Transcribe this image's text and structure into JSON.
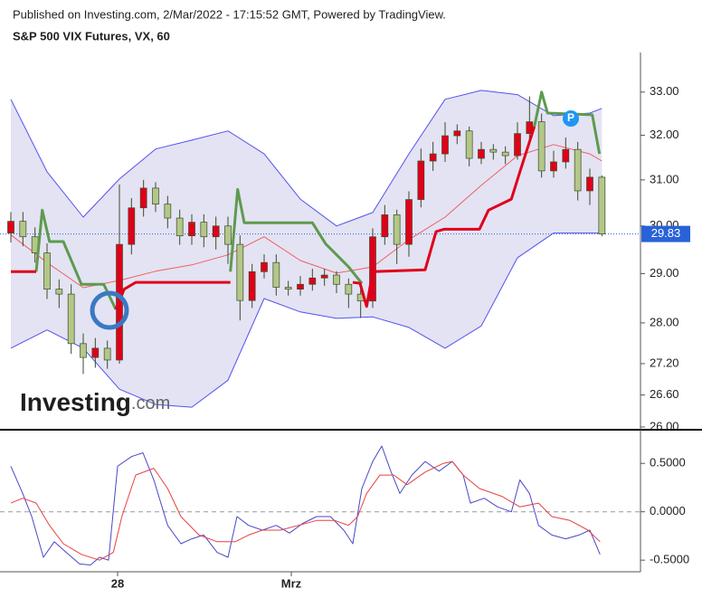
{
  "chart_data": [
    {
      "type": "candlestick",
      "source": "Published on Investing.com, 2/Mar/2022 - 17:15:52 GMT, Powered by TradingView.",
      "title": "S&P 500 VIX Futures, VX, 60",
      "logo": {
        "name": "Investing",
        "suffix": ".com"
      },
      "marker": "P",
      "log_scale": true,
      "xlim": [
        -0.9,
        52.2
      ],
      "xticks": [
        {
          "value": 8.85,
          "label": "28"
        },
        {
          "value": 23.25,
          "label": "Mrz"
        }
      ],
      "ylim": [
        25.95,
        33.9
      ],
      "yticks": [
        {
          "value": 26,
          "label": "26.00"
        },
        {
          "value": 26.6,
          "label": "26.60"
        },
        {
          "value": 27.2,
          "label": "27.20"
        },
        {
          "value": 28,
          "label": "28.00"
        },
        {
          "value": 29,
          "label": "29.00"
        },
        {
          "value": 30,
          "label": "30.00"
        },
        {
          "value": 31,
          "label": "31.00"
        },
        {
          "value": 32,
          "label": "32.00"
        },
        {
          "value": 33,
          "label": "33.00"
        }
      ],
      "up_color": "#e0001a",
      "down_color": "#b3c788",
      "outline_color": "#3b4a2a",
      "open": [
        29.85,
        30.1,
        29.77,
        29.43,
        28.68,
        28.58,
        27.59,
        27.32,
        27.5,
        27.27,
        29.61,
        30.39,
        30.82,
        30.47,
        30.17,
        29.79,
        30.08,
        29.77,
        30.0,
        29.61,
        28.45,
        29.04,
        29.23,
        28.72,
        28.68,
        28.78,
        28.91,
        28.97,
        28.78,
        28.58,
        28.44,
        29.77,
        30.24,
        29.61,
        30.57,
        31.42,
        31.58,
        31.99,
        32.1,
        31.48,
        31.68,
        31.62,
        31.54,
        32.04,
        32.31,
        31.2,
        31.4,
        31.68,
        30.76,
        31.06
      ],
      "high": [
        30.3,
        30.3,
        29.97,
        29.63,
        28.88,
        28.78,
        27.79,
        27.7,
        27.65,
        30.9,
        30.6,
        31.0,
        30.95,
        30.65,
        30.35,
        30.25,
        30.25,
        30.2,
        30.2,
        29.8,
        29.2,
        29.4,
        29.4,
        28.85,
        28.95,
        29.1,
        29.1,
        29.05,
        28.9,
        28.75,
        29.95,
        30.45,
        30.35,
        30.75,
        31.7,
        31.85,
        32.3,
        32.25,
        32.2,
        31.85,
        31.8,
        31.75,
        32.3,
        32.9,
        32.5,
        31.65,
        31.95,
        31.85,
        31.25,
        31.1
      ],
      "low": [
        29.65,
        29.57,
        29.23,
        28.48,
        28.3,
        27.39,
        27.0,
        27.12,
        27.1,
        27.2,
        29.4,
        30.2,
        30.3,
        29.95,
        29.6,
        29.6,
        29.55,
        29.5,
        29.2,
        28.05,
        28.3,
        28.9,
        28.55,
        28.55,
        28.55,
        28.65,
        28.75,
        28.6,
        28.3,
        28.1,
        28.3,
        29.6,
        29.2,
        29.35,
        30.4,
        31.2,
        31.4,
        31.8,
        31.3,
        31.35,
        31.45,
        31.35,
        31.45,
        31.9,
        31.05,
        31.05,
        31.25,
        30.55,
        30.45,
        29.78
      ],
      "close": [
        30.1,
        29.77,
        29.43,
        28.68,
        28.58,
        27.59,
        27.32,
        27.5,
        27.27,
        29.61,
        30.39,
        30.82,
        30.47,
        30.17,
        29.79,
        30.08,
        29.77,
        30.0,
        29.61,
        28.45,
        29.04,
        29.23,
        28.72,
        28.68,
        28.78,
        28.91,
        28.97,
        28.78,
        28.58,
        28.44,
        29.77,
        30.24,
        29.61,
        30.57,
        31.42,
        31.58,
        31.99,
        32.1,
        31.48,
        31.68,
        31.62,
        31.54,
        32.04,
        32.31,
        31.2,
        31.4,
        31.68,
        30.76,
        31.06,
        29.83
      ],
      "bands": {
        "x": [
          0,
          3,
          6,
          9,
          12,
          15,
          18,
          21,
          24,
          27,
          30,
          33,
          36,
          39,
          42,
          45,
          48,
          49
        ],
        "upper": [
          32.83,
          31.18,
          30.19,
          31.02,
          31.69,
          31.89,
          32.1,
          31.58,
          30.58,
          30.0,
          30.29,
          31.58,
          32.83,
          33.04,
          32.94,
          32.45,
          32.51,
          32.62
        ],
        "middle": [
          29.81,
          29.23,
          28.71,
          28.86,
          29.05,
          29.18,
          29.39,
          29.77,
          29.27,
          29.01,
          29.14,
          29.71,
          30.19,
          30.88,
          31.54,
          31.79,
          31.58,
          31.42
        ],
        "lower": [
          27.5,
          27.86,
          27.5,
          26.71,
          26.42,
          26.37,
          26.88,
          28.49,
          28.22,
          28.09,
          28.12,
          27.91,
          27.5,
          27.94,
          29.33,
          29.85,
          29.85,
          29.85
        ],
        "fill": "#e3e3f3",
        "line_color": "#5252ee",
        "middle_color": "#f06060"
      },
      "supertrend": [
        {
          "color": "#5e9a4e",
          "x": [
            2.1,
            2.6,
            3.2,
            4.35,
            5.85,
            7.7,
            8.7,
            13,
            18.2,
            18.8,
            19.35,
            25,
            26.1,
            28,
            29.1,
            36,
            43.4,
            44,
            44.5,
            48.2,
            48.8
          ],
          "values": [
            29.04,
            30.34,
            29.67,
            29.67,
            28.78,
            28.78,
            28.27,
            null,
            29.04,
            30.79,
            30.07,
            30.07,
            29.62,
            29.14,
            28.8,
            null,
            32.2,
            33.0,
            32.51,
            32.47,
            31.58
          ]
        },
        {
          "color": "#e0001a",
          "x": [
            0,
            2.1,
            5,
            8.7,
            9.4,
            10.35,
            18.2,
            23,
            28.35,
            28.95,
            29.5,
            30,
            34.35,
            35.25,
            35.9,
            38.85,
            39.6,
            41.5,
            42.2,
            43.4
          ],
          "values": [
            29.04,
            29.04,
            null,
            28.27,
            28.68,
            28.82,
            28.82,
            null,
            28.82,
            28.8,
            28.33,
            29.04,
            29.08,
            29.88,
            29.93,
            29.93,
            30.34,
            30.58,
            31.18,
            32.2
          ]
        }
      ],
      "last_price": {
        "value": 29.83,
        "label": "29.83"
      },
      "last_price_color": "#2962d8"
    },
    {
      "type": "line",
      "xlim": [
        -0.9,
        52.2
      ],
      "ylim": [
        -0.62,
        0.82
      ],
      "yticks": [
        {
          "value": 0.5,
          "label": "0.5000"
        },
        {
          "value": 0,
          "label": "0.0000"
        },
        {
          "value": -0.5,
          "label": "-0.5000"
        }
      ],
      "zero_line": true,
      "series": [
        {
          "color": "#4848c8",
          "x": [
            0,
            0.98,
            1.73,
            2.7,
            3.6,
            4.5,
            5.7,
            6.6,
            7.35,
            8.1,
            8.85,
            10,
            10.95,
            11.85,
            13,
            14.1,
            15,
            16,
            17.1,
            18,
            18.75,
            19.7,
            20.85,
            22,
            23.1,
            24.2,
            25.35,
            26.5,
            27.6,
            28.35,
            29.1,
            30,
            30.75,
            31.5,
            32.25,
            33.25,
            34.35,
            35.5,
            36.6,
            37.5,
            38.1,
            39.25,
            40.35,
            41.5,
            42.2,
            43,
            43.75,
            44.85,
            46,
            47.1,
            48,
            48.85
          ],
          "values": [
            0.47,
            0.19,
            -0.05,
            -0.47,
            -0.31,
            -0.41,
            -0.54,
            -0.55,
            -0.47,
            -0.5,
            0.47,
            0.57,
            0.61,
            0.33,
            -0.14,
            -0.33,
            -0.28,
            -0.24,
            -0.42,
            -0.47,
            -0.05,
            -0.14,
            -0.19,
            -0.14,
            -0.22,
            -0.12,
            -0.05,
            -0.05,
            -0.19,
            -0.33,
            0.24,
            0.52,
            0.68,
            0.42,
            0.19,
            0.38,
            0.52,
            0.42,
            0.52,
            0.38,
            0.09,
            0.14,
            0.05,
            0.0,
            0.33,
            0.19,
            -0.14,
            -0.24,
            -0.28,
            -0.24,
            -0.19,
            -0.44
          ]
        },
        {
          "color": "#e84040",
          "x": [
            0,
            0.98,
            2.1,
            3.2,
            4.35,
            5.85,
            7.35,
            8.5,
            9.2,
            10.35,
            11.85,
            13,
            14.1,
            15.6,
            17.1,
            18.6,
            19.7,
            20.85,
            22.35,
            23.85,
            25.35,
            26.85,
            28,
            28.75,
            29.5,
            30.6,
            31.75,
            32.85,
            34.35,
            35.85,
            36.6,
            37.5,
            38.85,
            40.7,
            42.2,
            43.75,
            44.85,
            46.35,
            47.85,
            48.85
          ],
          "values": [
            0.09,
            0.14,
            0.09,
            -0.14,
            -0.33,
            -0.44,
            -0.5,
            -0.42,
            -0.05,
            0.38,
            0.45,
            0.24,
            -0.05,
            -0.24,
            -0.31,
            -0.31,
            -0.24,
            -0.19,
            -0.19,
            -0.14,
            -0.09,
            -0.09,
            -0.14,
            -0.05,
            0.19,
            0.38,
            0.38,
            0.28,
            0.41,
            0.5,
            0.52,
            0.38,
            0.24,
            0.16,
            0.05,
            0.09,
            -0.05,
            -0.09,
            -0.19,
            -0.31
          ]
        }
      ]
    }
  ]
}
